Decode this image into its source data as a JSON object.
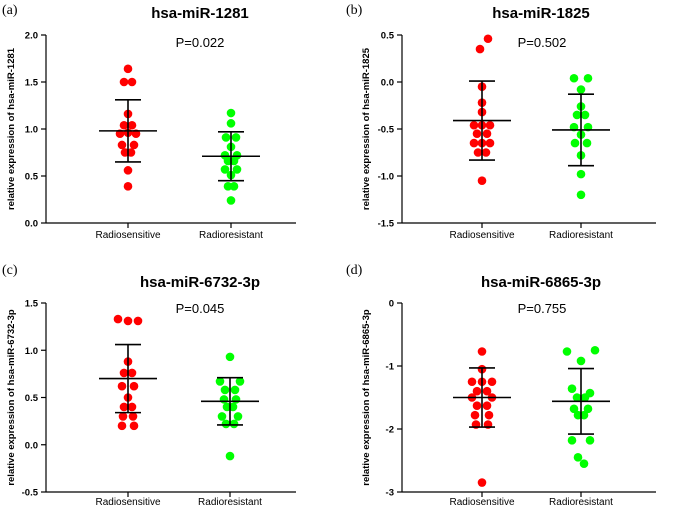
{
  "chart_data": [
    {
      "type": "scatter",
      "panel_label": "(a)",
      "title": "hsa-miR-1281",
      "annotation": "P=0.022",
      "ylabel": "relative expression of hsa-miR-1281",
      "categories": [
        "Radiosensitive",
        "Radioresistant"
      ],
      "ylim": [
        0,
        2.0
      ],
      "yticks": [
        0.0,
        0.5,
        1.0,
        1.5,
        2.0
      ],
      "ytick_labels": [
        "0.0",
        "0.5",
        "1.0",
        "1.5",
        "2.0"
      ],
      "series": [
        {
          "name": "Radiosensitive",
          "color": "#ff0000",
          "mean": 0.98,
          "sd": 0.33,
          "points": [
            {
              "o": 0,
              "v": 1.64
            },
            {
              "o": -4,
              "v": 1.5
            },
            {
              "o": 4,
              "v": 1.5
            },
            {
              "o": 0,
              "v": 1.16
            },
            {
              "o": -4,
              "v": 1.04
            },
            {
              "o": 4,
              "v": 1.04
            },
            {
              "o": -8,
              "v": 0.95
            },
            {
              "o": 0,
              "v": 0.96
            },
            {
              "o": 8,
              "v": 0.95
            },
            {
              "o": -6,
              "v": 0.83
            },
            {
              "o": 6,
              "v": 0.83
            },
            {
              "o": -3,
              "v": 0.75
            },
            {
              "o": 3,
              "v": 0.75
            },
            {
              "o": 0,
              "v": 0.56
            },
            {
              "o": 0,
              "v": 0.39
            }
          ]
        },
        {
          "name": "Radioresistant",
          "color": "#00ff00",
          "mean": 0.71,
          "sd": 0.26,
          "points": [
            {
              "o": 0,
              "v": 1.17
            },
            {
              "o": 0,
              "v": 1.06
            },
            {
              "o": -5,
              "v": 0.91
            },
            {
              "o": 5,
              "v": 0.91
            },
            {
              "o": 0,
              "v": 0.81
            },
            {
              "o": -6,
              "v": 0.72
            },
            {
              "o": 6,
              "v": 0.72
            },
            {
              "o": -3,
              "v": 0.66
            },
            {
              "o": 3,
              "v": 0.66
            },
            {
              "o": -6,
              "v": 0.57
            },
            {
              "o": 6,
              "v": 0.57
            },
            {
              "o": 0,
              "v": 0.51
            },
            {
              "o": -3,
              "v": 0.39
            },
            {
              "o": 3,
              "v": 0.39
            },
            {
              "o": 0,
              "v": 0.24
            }
          ]
        }
      ]
    },
    {
      "type": "scatter",
      "panel_label": "(b)",
      "title": "hsa-miR-1825",
      "annotation": "P=0.502",
      "ylabel": "relative expression of hsa-miR-1825",
      "categories": [
        "Radiosensitive",
        "Radioresistant"
      ],
      "ylim": [
        -1.5,
        0.5
      ],
      "yticks": [
        -1.5,
        -1.0,
        -0.5,
        0.0,
        0.5
      ],
      "ytick_labels": [
        "-1.5",
        "-1.0",
        "-0.5",
        "0.0",
        "0.5"
      ],
      "series": [
        {
          "name": "Radiosensitive",
          "color": "#ff0000",
          "mean": -0.41,
          "sd": 0.42,
          "points": [
            {
              "o": 6,
              "v": 0.46
            },
            {
              "o": -2,
              "v": 0.35
            },
            {
              "o": 0,
              "v": -0.05
            },
            {
              "o": 0,
              "v": -0.22
            },
            {
              "o": 0,
              "v": -0.32
            },
            {
              "o": -8,
              "v": -0.46
            },
            {
              "o": 0,
              "v": -0.46
            },
            {
              "o": 8,
              "v": -0.46
            },
            {
              "o": -5,
              "v": -0.55
            },
            {
              "o": 5,
              "v": -0.55
            },
            {
              "o": -8,
              "v": -0.65
            },
            {
              "o": 0,
              "v": -0.65
            },
            {
              "o": 8,
              "v": -0.65
            },
            {
              "o": -4,
              "v": -0.75
            },
            {
              "o": 4,
              "v": -0.75
            },
            {
              "o": 0,
              "v": -1.05
            }
          ]
        },
        {
          "name": "Radioresistant",
          "color": "#00ff00",
          "mean": -0.51,
          "sd": 0.38,
          "points": [
            {
              "o": -7,
              "v": 0.04
            },
            {
              "o": 7,
              "v": 0.04
            },
            {
              "o": 0,
              "v": -0.08
            },
            {
              "o": 0,
              "v": -0.26
            },
            {
              "o": -4,
              "v": -0.35
            },
            {
              "o": 4,
              "v": -0.35
            },
            {
              "o": -7,
              "v": -0.48
            },
            {
              "o": 7,
              "v": -0.48
            },
            {
              "o": 0,
              "v": -0.56
            },
            {
              "o": -6,
              "v": -0.65
            },
            {
              "o": 6,
              "v": -0.65
            },
            {
              "o": 0,
              "v": -0.78
            },
            {
              "o": 0,
              "v": -0.98
            },
            {
              "o": 0,
              "v": -1.2
            }
          ]
        }
      ]
    },
    {
      "type": "scatter",
      "panel_label": "(c)",
      "title": "hsa-miR-6732-3p",
      "annotation": "P=0.045",
      "ylabel": "relative expression of hsa-miR-6732-3p",
      "categories": [
        "Radiosensitive",
        "Radioresistant"
      ],
      "ylim": [
        -0.5,
        1.5
      ],
      "yticks": [
        -0.5,
        0.0,
        0.5,
        1.0,
        1.5
      ],
      "ytick_labels": [
        "-0.5",
        "0.0",
        "0.5",
        "1.0",
        "1.5"
      ],
      "series": [
        {
          "name": "Radiosensitive",
          "color": "#ff0000",
          "mean": 0.7,
          "sd": 0.36,
          "points": [
            {
              "o": -10,
              "v": 1.33
            },
            {
              "o": 0,
              "v": 1.31
            },
            {
              "o": 10,
              "v": 1.31
            },
            {
              "o": 0,
              "v": 0.88
            },
            {
              "o": -4,
              "v": 0.76
            },
            {
              "o": 4,
              "v": 0.76
            },
            {
              "o": -6,
              "v": 0.62
            },
            {
              "o": 6,
              "v": 0.62
            },
            {
              "o": 0,
              "v": 0.5
            },
            {
              "o": -4,
              "v": 0.4
            },
            {
              "o": 4,
              "v": 0.4
            },
            {
              "o": -5,
              "v": 0.3
            },
            {
              "o": 5,
              "v": 0.3
            },
            {
              "o": -6,
              "v": 0.2
            },
            {
              "o": 6,
              "v": 0.2
            }
          ]
        },
        {
          "name": "Radioresistant",
          "color": "#00ff00",
          "mean": 0.46,
          "sd": 0.25,
          "points": [
            {
              "o": 0,
              "v": 0.93
            },
            {
              "o": -10,
              "v": 0.67
            },
            {
              "o": 10,
              "v": 0.67
            },
            {
              "o": -5,
              "v": 0.58
            },
            {
              "o": 5,
              "v": 0.58
            },
            {
              "o": -6,
              "v": 0.48
            },
            {
              "o": 6,
              "v": 0.48
            },
            {
              "o": -3,
              "v": 0.4
            },
            {
              "o": 3,
              "v": 0.4
            },
            {
              "o": -8,
              "v": 0.3
            },
            {
              "o": 8,
              "v": 0.3
            },
            {
              "o": -4,
              "v": 0.22
            },
            {
              "o": 4,
              "v": 0.22
            },
            {
              "o": 0,
              "v": -0.12
            }
          ]
        }
      ]
    },
    {
      "type": "scatter",
      "panel_label": "(d)",
      "title": "hsa-miR-6865-3p",
      "annotation": "P=0.755",
      "ylabel": "relative expression of hsa-miR-6865-3p",
      "categories": [
        "Radiosensitive",
        "Radioresistant"
      ],
      "ylim": [
        -3,
        0
      ],
      "yticks": [
        -3,
        -2,
        -1,
        0
      ],
      "ytick_labels": [
        "-3",
        "-2",
        "-1",
        "0"
      ],
      "series": [
        {
          "name": "Radiosensitive",
          "color": "#ff0000",
          "mean": -1.5,
          "sd": 0.47,
          "points": [
            {
              "o": 0,
              "v": -0.77
            },
            {
              "o": 0,
              "v": -1.05
            },
            {
              "o": -10,
              "v": -1.25
            },
            {
              "o": 0,
              "v": -1.25
            },
            {
              "o": 10,
              "v": -1.25
            },
            {
              "o": -5,
              "v": -1.4
            },
            {
              "o": 5,
              "v": -1.4
            },
            {
              "o": -10,
              "v": -1.5
            },
            {
              "o": 10,
              "v": -1.5
            },
            {
              "o": -5,
              "v": -1.63
            },
            {
              "o": 5,
              "v": -1.63
            },
            {
              "o": -7,
              "v": -1.78
            },
            {
              "o": 7,
              "v": -1.78
            },
            {
              "o": -6,
              "v": -1.93
            },
            {
              "o": 6,
              "v": -1.93
            },
            {
              "o": 0,
              "v": -2.85
            }
          ]
        },
        {
          "name": "Radioresistant",
          "color": "#00ff00",
          "mean": -1.56,
          "sd": 0.52,
          "points": [
            {
              "o": -14,
              "v": -0.77
            },
            {
              "o": 14,
              "v": -0.75
            },
            {
              "o": 0,
              "v": -0.92
            },
            {
              "o": -9,
              "v": -1.36
            },
            {
              "o": 9,
              "v": -1.43
            },
            {
              "o": -4,
              "v": -1.5
            },
            {
              "o": 4,
              "v": -1.5
            },
            {
              "o": -7,
              "v": -1.68
            },
            {
              "o": 7,
              "v": -1.68
            },
            {
              "o": -3,
              "v": -1.78
            },
            {
              "o": 3,
              "v": -1.78
            },
            {
              "o": -9,
              "v": -2.18
            },
            {
              "o": 9,
              "v": -2.18
            },
            {
              "o": -3,
              "v": -2.45
            },
            {
              "o": 3,
              "v": -2.55
            }
          ]
        }
      ]
    }
  ]
}
